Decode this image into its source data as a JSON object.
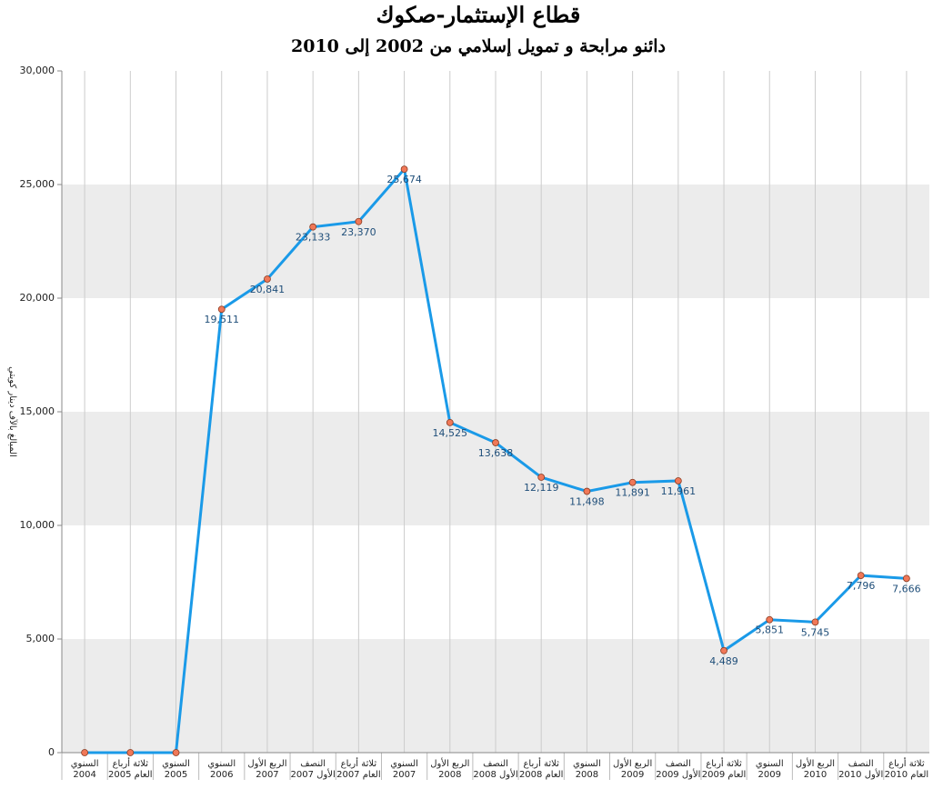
{
  "chart_data": {
    "type": "line",
    "title": "قطاع الإستثمار-صكوك",
    "subtitle": "دائنو مرابحة و تمويل إسلامي من 2002 إلى 2010",
    "y_label": "المبالغ بالآف دينار كويتي",
    "categories": [
      [
        "السنوي",
        "2004"
      ],
      [
        "ثلاثة أرباع",
        "العام 2005"
      ],
      [
        "السنوي",
        "2005"
      ],
      [
        "السنوي",
        "2006"
      ],
      [
        "الربع الأول",
        "2007"
      ],
      [
        "النصف",
        "الأول 2007"
      ],
      [
        "ثلاثة أرباع",
        "العام 2007"
      ],
      [
        "السنوي",
        "2007"
      ],
      [
        "الربع الأول",
        "2008"
      ],
      [
        "النصف",
        "الأول 2008"
      ],
      [
        "ثلاثة أرباع",
        "العام 2008"
      ],
      [
        "السنوي",
        "2008"
      ],
      [
        "الربع الأول",
        "2009"
      ],
      [
        "النصف",
        "الأول 2009"
      ],
      [
        "ثلاثة أرباع",
        "العام 2009"
      ],
      [
        "السنوي",
        "2009"
      ],
      [
        "الربع الأول",
        "2010"
      ],
      [
        "النصف",
        "الأول 2010"
      ],
      [
        "ثلاثة أرباع",
        "العام 2010"
      ]
    ],
    "values": [
      0,
      0,
      0,
      19511,
      20841,
      23133,
      23370,
      25674,
      14525,
      13638,
      12119,
      11498,
      11891,
      11961,
      4489,
      5851,
      5745,
      7796,
      7666
    ],
    "value_labels": [
      null,
      null,
      null,
      "19,511",
      "20,841",
      "23,133",
      "23,370",
      "25,674",
      "14,525",
      "13,638",
      "12,119",
      "11,498",
      "11,891",
      "11,961",
      "4,489",
      "5,851",
      "5,745",
      "7,796",
      "7,666"
    ],
    "color": "#1a9ae8",
    "marker_color": "#f07858",
    "ylim": [
      0,
      30000
    ],
    "yticks": [
      0,
      {
        "value": 5000,
        "label": "5,000"
      },
      {
        "value": 10000,
        "label": "10,000"
      },
      {
        "value": 15000,
        "label": "15,000"
      },
      {
        "value": 20000,
        "label": "20,000"
      },
      {
        "value": 25000,
        "label": "25,000"
      },
      {
        "value": 30000,
        "label": "30,000"
      }
    ],
    "grid": true,
    "band_color": "#ececec"
  }
}
